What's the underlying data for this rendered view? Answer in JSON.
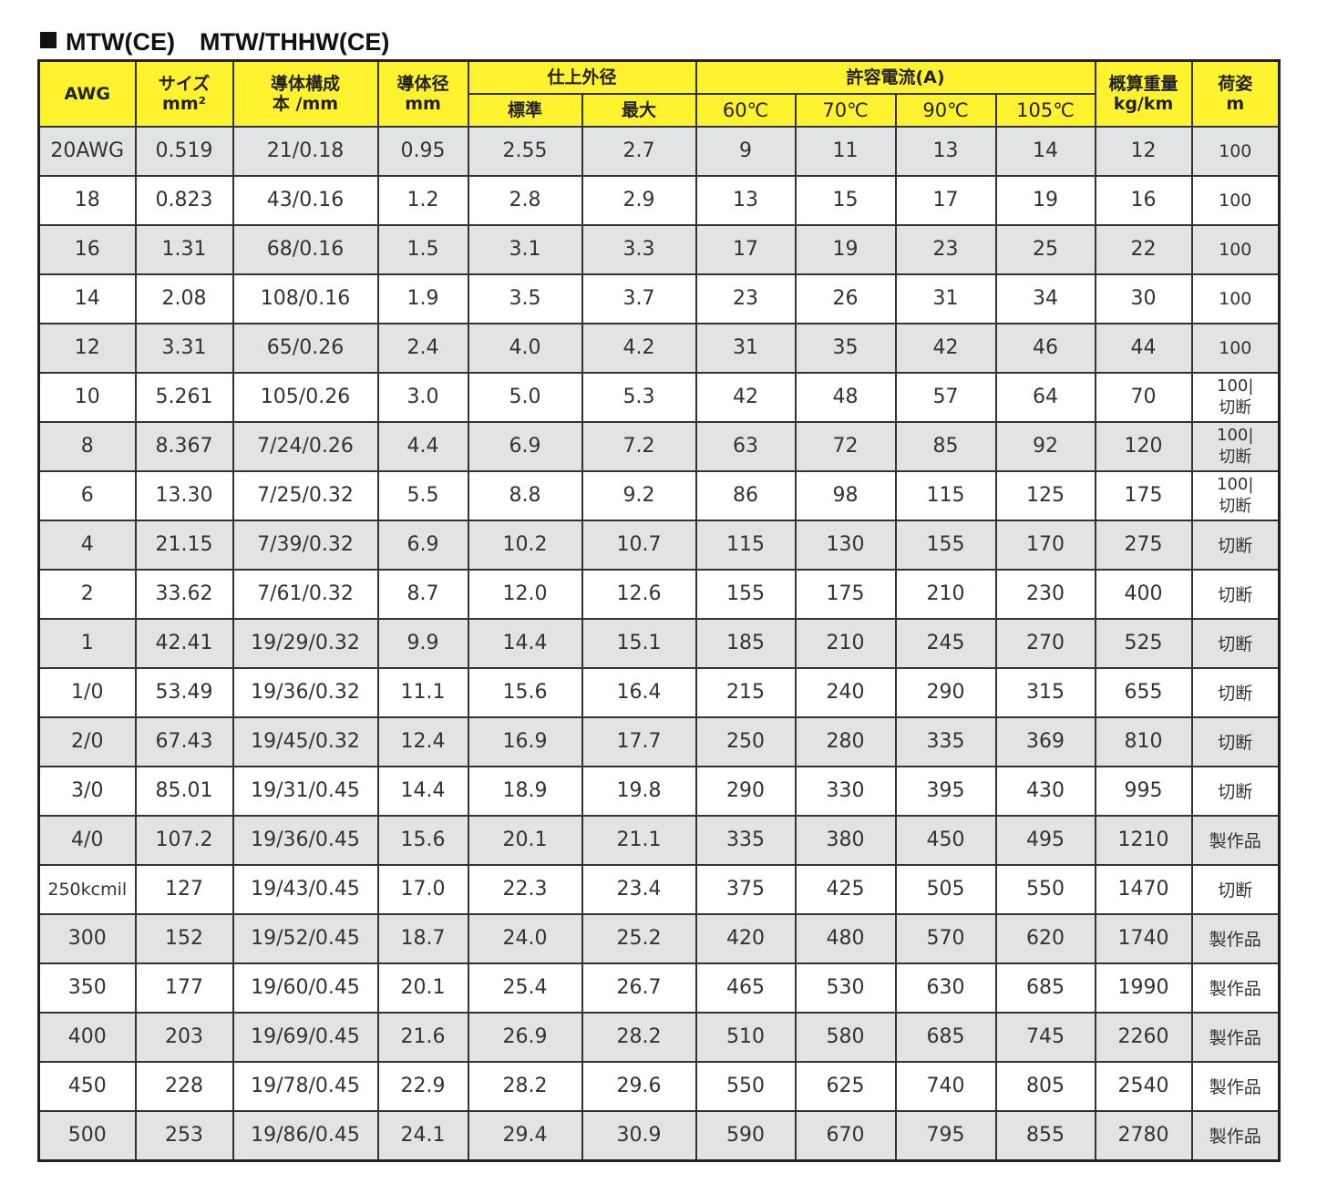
{
  "title": "MTW(CE)　MTW/THHW(CE)",
  "headers": {
    "awg": "AWG",
    "size": "サイズ",
    "size_unit": "mm²",
    "conductor": "導体構成",
    "conductor_unit": "本 /mm",
    "diameter": "導体径",
    "diameter_unit": "mm",
    "outer": "仕上外径",
    "outer_std": "標準",
    "outer_max": "最大",
    "current": "許容電流(A)",
    "c60": "60℃",
    "c70": "70℃",
    "c90": "90℃",
    "c105": "105℃",
    "weight": "概算重量",
    "weight_unit": "kg/km",
    "packing": "荷姿",
    "packing_unit": "m"
  },
  "rows": [
    [
      "20AWG",
      "0.519",
      "21/0.18",
      "0.95",
      "2.55",
      "2.7",
      "9",
      "11",
      "13",
      "14",
      "12",
      "100"
    ],
    [
      "18",
      "0.823",
      "43/0.16",
      "1.2",
      "2.8",
      "2.9",
      "13",
      "15",
      "17",
      "19",
      "16",
      "100"
    ],
    [
      "16",
      "1.31",
      "68/0.16",
      "1.5",
      "3.1",
      "3.3",
      "17",
      "19",
      "23",
      "25",
      "22",
      "100"
    ],
    [
      "14",
      "2.08",
      "108/0.16",
      "1.9",
      "3.5",
      "3.7",
      "23",
      "26",
      "31",
      "34",
      "30",
      "100"
    ],
    [
      "12",
      "3.31",
      "65/0.26",
      "2.4",
      "4.0",
      "4.2",
      "31",
      "35",
      "42",
      "46",
      "44",
      "100"
    ],
    [
      "10",
      "5.261",
      "105/0.26",
      "3.0",
      "5.0",
      "5.3",
      "42",
      "48",
      "57",
      "64",
      "70",
      "100|切断"
    ],
    [
      "8",
      "8.367",
      "7/24/0.26",
      "4.4",
      "6.9",
      "7.2",
      "63",
      "72",
      "85",
      "92",
      "120",
      "100|切断"
    ],
    [
      "6",
      "13.30",
      "7/25/0.32",
      "5.5",
      "8.8",
      "9.2",
      "86",
      "98",
      "115",
      "125",
      "175",
      "100|切断"
    ],
    [
      "4",
      "21.15",
      "7/39/0.32",
      "6.9",
      "10.2",
      "10.7",
      "115",
      "130",
      "155",
      "170",
      "275",
      "切断"
    ],
    [
      "2",
      "33.62",
      "7/61/0.32",
      "8.7",
      "12.0",
      "12.6",
      "155",
      "175",
      "210",
      "230",
      "400",
      "切断"
    ],
    [
      "1",
      "42.41",
      "19/29/0.32",
      "9.9",
      "14.4",
      "15.1",
      "185",
      "210",
      "245",
      "270",
      "525",
      "切断"
    ],
    [
      "1/0",
      "53.49",
      "19/36/0.32",
      "11.1",
      "15.6",
      "16.4",
      "215",
      "240",
      "290",
      "315",
      "655",
      "切断"
    ],
    [
      "2/0",
      "67.43",
      "19/45/0.32",
      "12.4",
      "16.9",
      "17.7",
      "250",
      "280",
      "335",
      "369",
      "810",
      "切断"
    ],
    [
      "3/0",
      "85.01",
      "19/31/0.45",
      "14.4",
      "18.9",
      "19.8",
      "290",
      "330",
      "395",
      "430",
      "995",
      "切断"
    ],
    [
      "4/0",
      "107.2",
      "19/36/0.45",
      "15.6",
      "20.1",
      "21.1",
      "335",
      "380",
      "450",
      "495",
      "1210",
      "製作品"
    ],
    [
      "250kcmil",
      "127",
      "19/43/0.45",
      "17.0",
      "22.3",
      "23.4",
      "375",
      "425",
      "505",
      "550",
      "1470",
      "切断"
    ],
    [
      "300",
      "152",
      "19/52/0.45",
      "18.7",
      "24.0",
      "25.2",
      "420",
      "480",
      "570",
      "620",
      "1740",
      "製作品"
    ],
    [
      "350",
      "177",
      "19/60/0.45",
      "20.1",
      "25.4",
      "26.7",
      "465",
      "530",
      "630",
      "685",
      "1990",
      "製作品"
    ],
    [
      "400",
      "203",
      "19/69/0.45",
      "21.6",
      "26.9",
      "28.2",
      "510",
      "580",
      "685",
      "745",
      "2260",
      "製作品"
    ],
    [
      "450",
      "228",
      "19/78/0.45",
      "22.9",
      "28.2",
      "29.6",
      "550",
      "625",
      "740",
      "805",
      "2540",
      "製作品"
    ],
    [
      "500",
      "253",
      "19/86/0.45",
      "24.1",
      "29.4",
      "30.9",
      "590",
      "670",
      "795",
      "855",
      "2780",
      "製作品"
    ]
  ]
}
